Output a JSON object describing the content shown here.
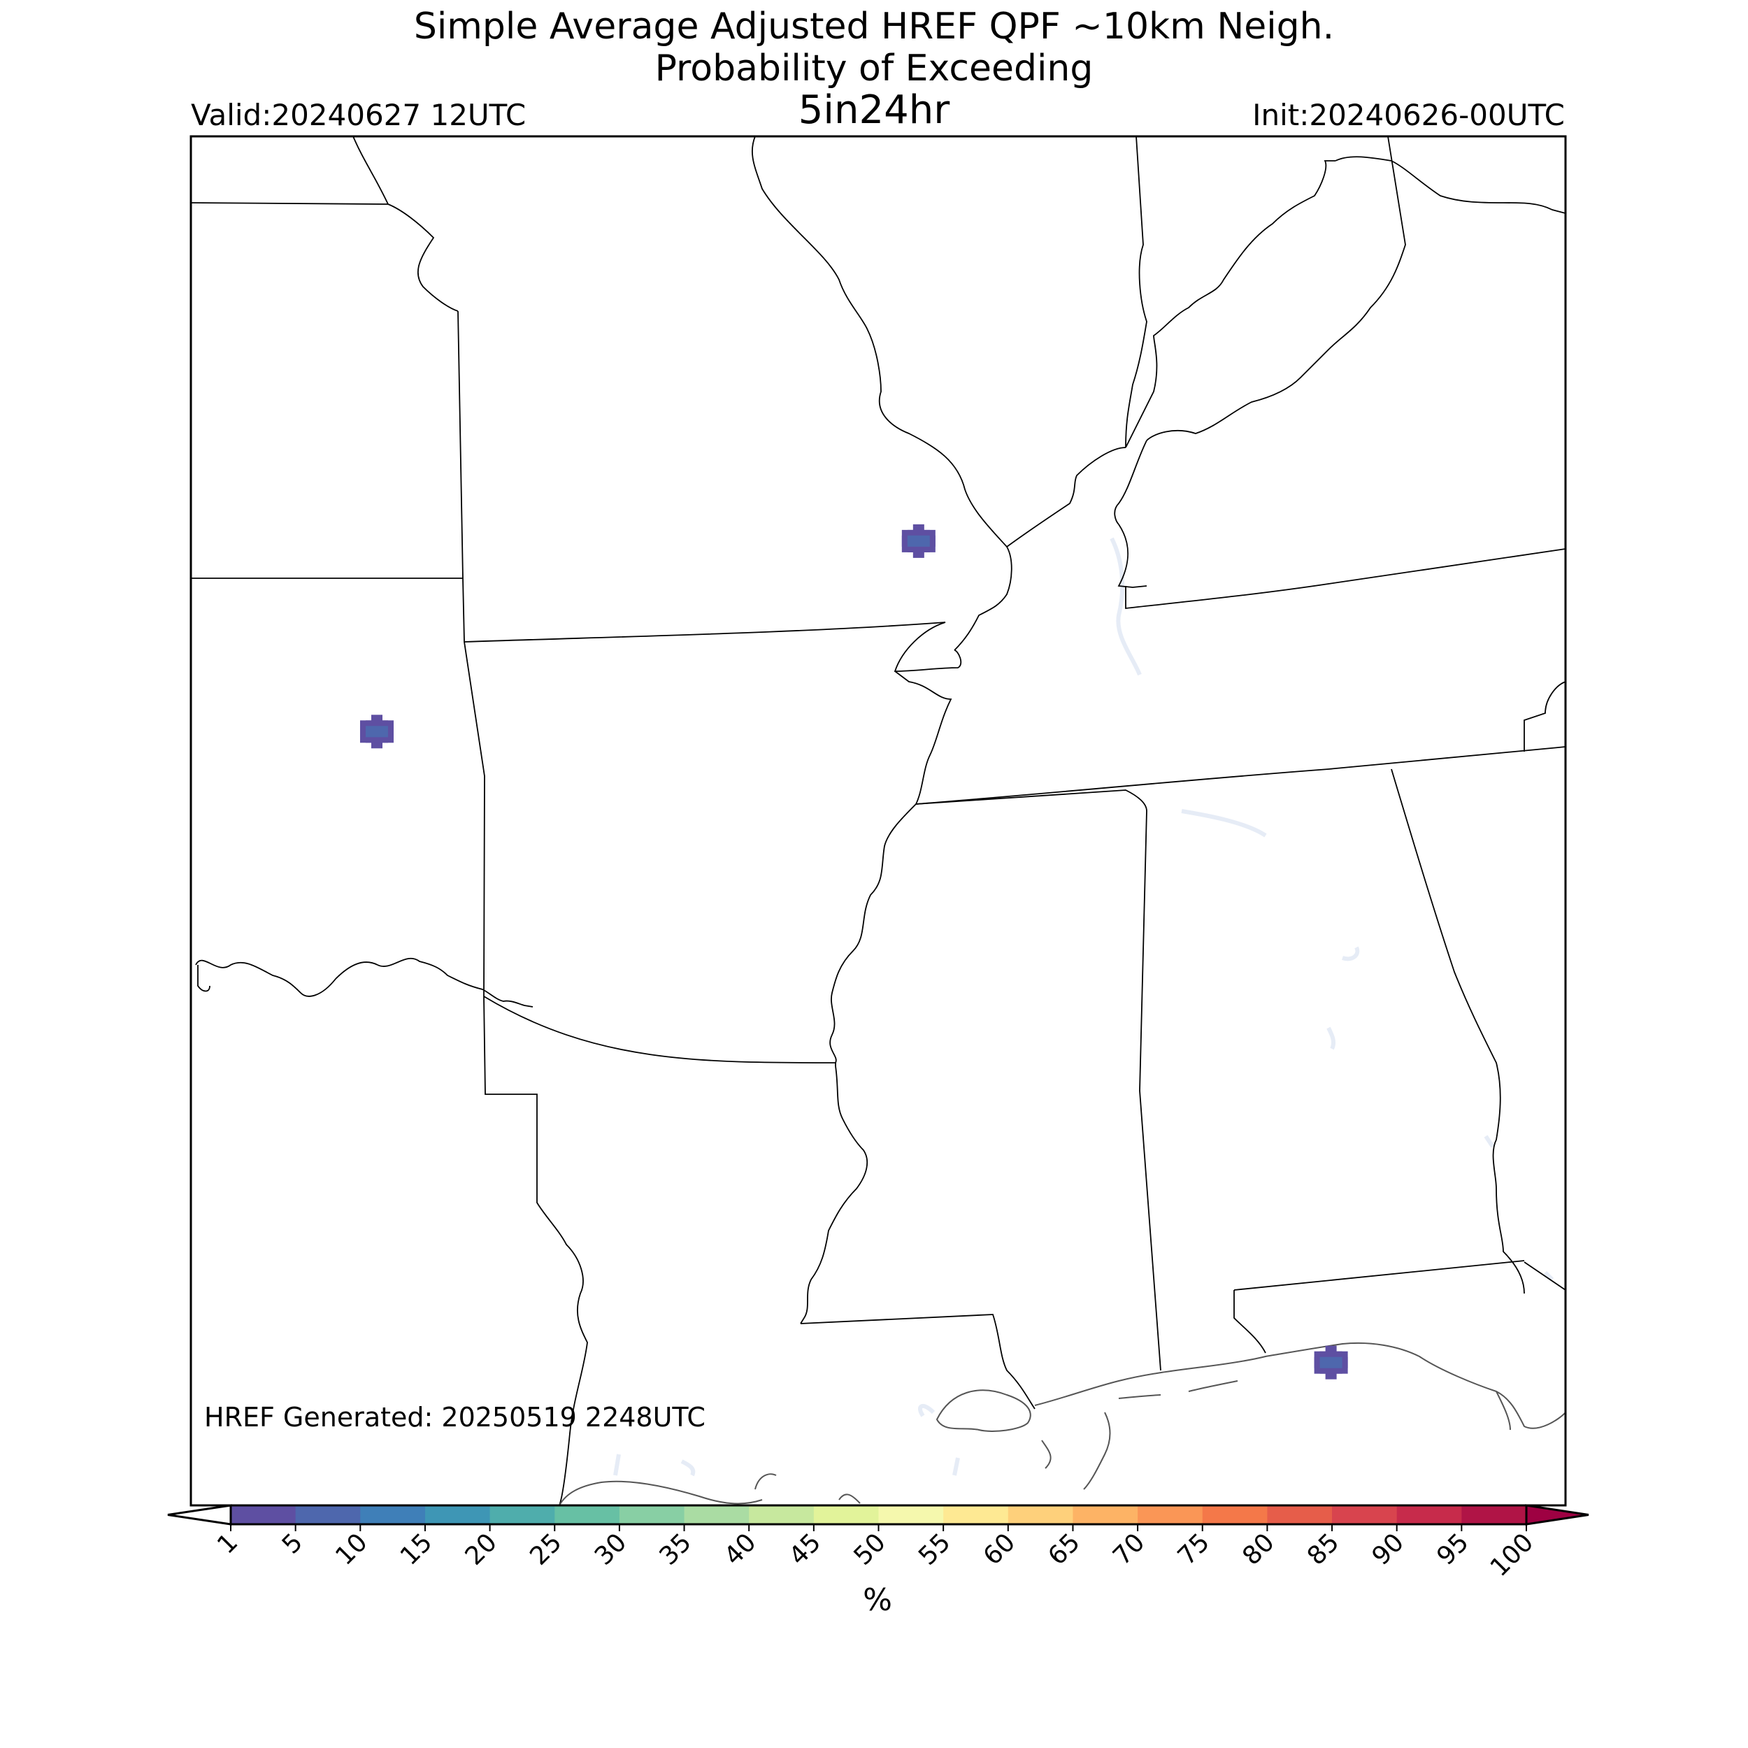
{
  "title": {
    "line1": "Simple Average Adjusted HREF QPF ~10km Neigh.",
    "line2": "Probability of Exceeding",
    "line3": "5in24hr"
  },
  "valid": "Valid:20240627 12UTC",
  "init": "Init:20240626-00UTC",
  "generated": "HREF Generated: 20250519 2248UTC",
  "colorbar": {
    "unit": "%",
    "extend": "both",
    "levels": [
      "1",
      "5",
      "10",
      "15",
      "20",
      "25",
      "30",
      "35",
      "40",
      "45",
      "50",
      "55",
      "60",
      "65",
      "70",
      "75",
      "80",
      "85",
      "90",
      "95",
      "100"
    ],
    "colors": [
      "#5e4fa2",
      "#4e67ad",
      "#3f7fb8",
      "#3e96b5",
      "#4fadac",
      "#67c0a4",
      "#88cfa4",
      "#aadca3",
      "#c7e89e",
      "#e2f39a",
      "#f5f8ad",
      "#fee993",
      "#fed07b",
      "#fdb365",
      "#fa9656",
      "#f47849",
      "#e65d4a",
      "#d8444e",
      "#c72b4b",
      "#b01446"
    ],
    "under_color": "#ffffff",
    "over_color": "#9e0142"
  },
  "probability_cells": [
    {
      "lon": -96.7,
      "lat": 35.3,
      "level": "1"
    },
    {
      "lon": -90.0,
      "lat": 36.9,
      "level": "1"
    },
    {
      "lon": -84.9,
      "lat": 30.0,
      "level": "1"
    }
  ]
}
